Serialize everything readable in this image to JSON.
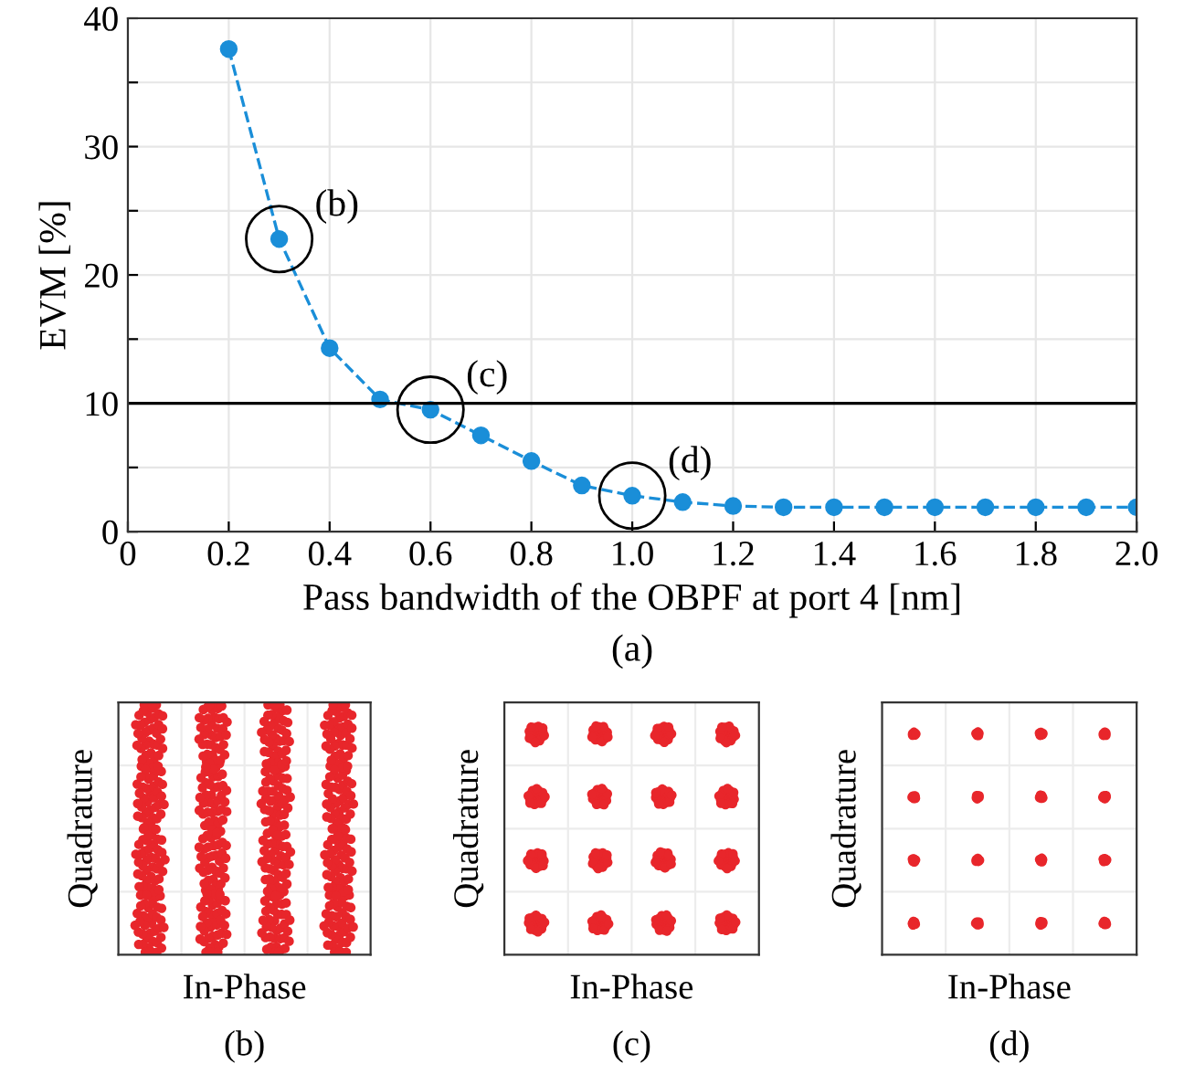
{
  "chart_data": [
    {
      "type": "line",
      "xlabel": "Pass bandwidth of the OBPF at port 4 [nm]",
      "ylabel": "EVM [%]",
      "x": [
        0.2,
        0.3,
        0.4,
        0.5,
        0.6,
        0.7,
        0.8,
        0.9,
        1.0,
        1.1,
        1.2,
        1.3,
        1.4,
        1.5,
        1.6,
        1.7,
        1.8,
        1.9,
        2.0
      ],
      "series": [
        {
          "color": "#1a8ed8",
          "values": [
            37.6,
            22.8,
            14.3,
            10.3,
            9.5,
            7.5,
            5.5,
            3.6,
            2.8,
            2.3,
            2.0,
            1.9,
            1.9,
            1.9,
            1.9,
            1.9,
            1.9,
            1.9,
            1.9
          ]
        }
      ],
      "marker": "circle",
      "line_style": "dashed",
      "xlim": [
        0,
        2
      ],
      "xticks": [
        0,
        0.2,
        0.4,
        0.6,
        0.8,
        {
          "value": 1,
          "label": "1.0"
        },
        1.2,
        1.4,
        1.6,
        1.8,
        {
          "value": 2,
          "label": "2.0"
        }
      ],
      "ylim": [
        0,
        40
      ],
      "yticks": [
        0,
        {
          "value": 5,
          "label": null
        },
        10,
        {
          "value": 15,
          "label": null
        },
        20,
        {
          "value": 25,
          "label": null
        },
        30,
        {
          "value": 35,
          "label": null
        },
        40
      ],
      "grid": true,
      "ref_lines": [
        {
          "axis": "y",
          "value": 10,
          "color": "#000000",
          "line_style": "solid"
        }
      ],
      "annotations": [
        {
          "text": "(b)",
          "x": 0.3,
          "y": 22.8
        },
        {
          "text": "(c)",
          "x": 0.6,
          "y": 9.5
        },
        {
          "text": "(d)",
          "x": 1.0,
          "y": 2.8
        },
        "(a)"
      ]
    },
    {
      "type": "other",
      "xlabel": "In-Phase",
      "ylabel": "Quadrature",
      "annotations": [
        "(b)"
      ]
    },
    {
      "type": "other",
      "xlabel": "In-Phase",
      "ylabel": "Quadrature",
      "annotations": [
        "(c)"
      ]
    },
    {
      "type": "other",
      "xlabel": "In-Phase",
      "ylabel": "Quadrature",
      "annotations": [
        "(d)"
      ]
    }
  ]
}
